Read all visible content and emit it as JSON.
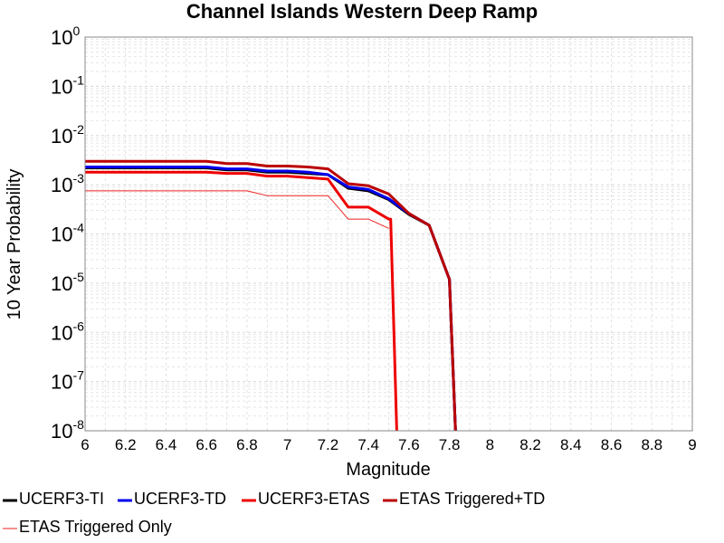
{
  "chart_data": {
    "type": "line",
    "title": "Channel Islands Western Deep Ramp",
    "xlabel": "Magnitude",
    "ylabel": "10 Year Probability",
    "xlim": [
      6,
      9
    ],
    "ylim": [
      1e-08,
      1
    ],
    "yscale": "log",
    "grid": true,
    "legend_position": "bottom",
    "x_ticks": [
      "6",
      "6.2",
      "6.4",
      "6.6",
      "6.8",
      "7",
      "7.2",
      "7.4",
      "7.6",
      "7.8",
      "8",
      "8.2",
      "8.4",
      "8.6",
      "8.8",
      "9"
    ],
    "y_ticks": [
      {
        "base": "10",
        "exp": "0"
      },
      {
        "base": "10",
        "exp": "-1"
      },
      {
        "base": "10",
        "exp": "-2"
      },
      {
        "base": "10",
        "exp": "-3"
      },
      {
        "base": "10",
        "exp": "-4"
      },
      {
        "base": "10",
        "exp": "-5"
      },
      {
        "base": "10",
        "exp": "-6"
      },
      {
        "base": "10",
        "exp": "-7"
      },
      {
        "base": "10",
        "exp": "-8"
      }
    ],
    "series": [
      {
        "name": "UCERF3-TI",
        "color": "#000000",
        "width": 3,
        "x": [
          6.0,
          6.1,
          6.2,
          6.3,
          6.4,
          6.5,
          6.6,
          6.7,
          6.8,
          6.9,
          7.0,
          7.1,
          7.2,
          7.3,
          7.4,
          7.5,
          7.6,
          7.7,
          7.8,
          7.83
        ],
        "y": [
          0.0022,
          0.0022,
          0.0022,
          0.0022,
          0.0022,
          0.0022,
          0.0022,
          0.002,
          0.002,
          0.0018,
          0.0018,
          0.0017,
          0.0016,
          0.00085,
          0.00075,
          0.0005,
          0.00025,
          0.00015,
          1.2e-05,
          1e-08
        ]
      },
      {
        "name": "UCERF3-TD",
        "color": "#0000ee",
        "width": 3,
        "x": [
          6.0,
          6.1,
          6.2,
          6.3,
          6.4,
          6.5,
          6.6,
          6.7,
          6.8,
          6.9,
          7.0,
          7.1,
          7.2,
          7.3,
          7.4,
          7.5,
          7.6,
          7.7,
          7.8,
          7.83
        ],
        "y": [
          0.0023,
          0.0023,
          0.0023,
          0.0023,
          0.0023,
          0.0023,
          0.0023,
          0.0021,
          0.0021,
          0.0019,
          0.0019,
          0.0018,
          0.0016,
          0.0009,
          0.0008,
          0.00052,
          0.00026,
          0.00015,
          1.2e-05,
          1e-08
        ]
      },
      {
        "name": "UCERF3-ETAS",
        "color": "#ee0000",
        "width": 3,
        "x": [
          6.0,
          6.1,
          6.2,
          6.3,
          6.4,
          6.5,
          6.6,
          6.7,
          6.8,
          6.9,
          7.0,
          7.1,
          7.2,
          7.3,
          7.4,
          7.5,
          7.51,
          7.54
        ],
        "y": [
          0.0018,
          0.0018,
          0.0018,
          0.0018,
          0.0018,
          0.0018,
          0.0018,
          0.0017,
          0.0017,
          0.0015,
          0.0015,
          0.0014,
          0.0013,
          0.00035,
          0.00035,
          0.0002,
          0.0002,
          1e-08
        ]
      },
      {
        "name": "ETAS Triggered+TD",
        "color": "#bb0000",
        "width": 3,
        "x": [
          6.0,
          6.1,
          6.2,
          6.3,
          6.4,
          6.5,
          6.6,
          6.7,
          6.8,
          6.9,
          7.0,
          7.1,
          7.2,
          7.3,
          7.4,
          7.5,
          7.6,
          7.7,
          7.8,
          7.83
        ],
        "y": [
          0.003,
          0.003,
          0.003,
          0.003,
          0.003,
          0.003,
          0.003,
          0.0027,
          0.0027,
          0.0024,
          0.0024,
          0.0023,
          0.0021,
          0.00105,
          0.00095,
          0.00065,
          0.00026,
          0.00015,
          1.2e-05,
          1e-08
        ]
      },
      {
        "name": "ETAS Triggered Only",
        "color": "#ee2222",
        "width": 1,
        "x": [
          6.0,
          6.1,
          6.2,
          6.3,
          6.4,
          6.5,
          6.6,
          6.7,
          6.8,
          6.9,
          7.0,
          7.1,
          7.2,
          7.3,
          7.4,
          7.5
        ],
        "y": [
          0.00075,
          0.00075,
          0.00075,
          0.00075,
          0.00075,
          0.00075,
          0.00075,
          0.00075,
          0.00075,
          0.0006,
          0.0006,
          0.0006,
          0.0006,
          0.0002,
          0.0002,
          0.00013
        ]
      }
    ]
  }
}
